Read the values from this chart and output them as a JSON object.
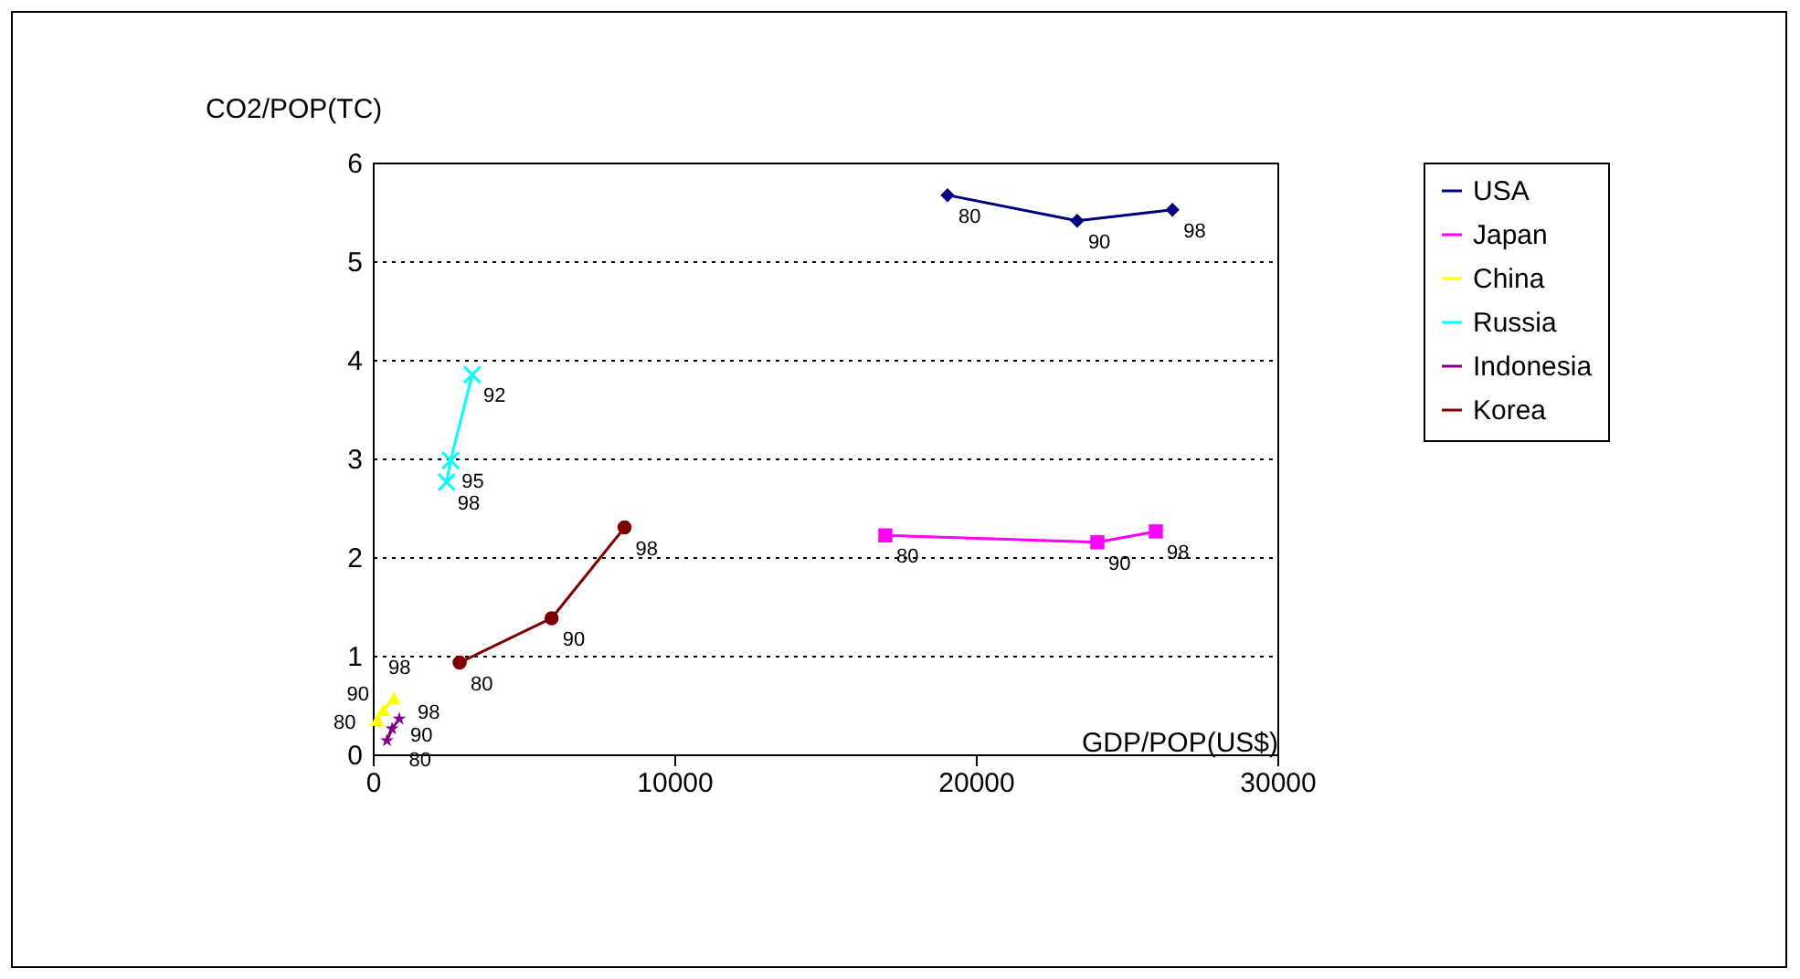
{
  "chart_data": {
    "type": "line",
    "xlabel": "GDP/POP(US$)",
    "ylabel": "CO2/POP(TC)",
    "xlim": [
      0,
      30000
    ],
    "xticks": [
      0,
      10000,
      20000,
      30000
    ],
    "ylim": [
      0,
      6
    ],
    "yticks": [
      0,
      1,
      2,
      3,
      4,
      5,
      6
    ],
    "grid": "y",
    "legend": "right",
    "line_style": "solid",
    "series": [
      {
        "name": "USA",
        "color": "#000080",
        "marker": "diamond",
        "x": [
          19060,
          23360,
          26520
        ],
        "values": [
          5.67,
          5.41,
          5.52
        ]
      },
      {
        "name": "Japan",
        "color": "#ff00ff",
        "marker": "square",
        "x": [
          17000,
          24030,
          25970
        ],
        "values": [
          2.22,
          2.15,
          2.26
        ]
      },
      {
        "name": "China",
        "color": "#ffff00",
        "marker": "triangle",
        "x": [
          150,
          350,
          700
        ],
        "values": [
          0.35,
          0.45,
          0.57
        ]
      },
      {
        "name": "Russia",
        "color": "#00ffff",
        "marker": "cross",
        "x": [
          3300,
          2580,
          2450
        ],
        "values": [
          3.85,
          2.98,
          2.76
        ]
      },
      {
        "name": "Indonesia",
        "color": "#800080",
        "marker": "star",
        "x": [
          470,
          640,
          880
        ],
        "values": [
          0.14,
          0.26,
          0.36
        ]
      },
      {
        "name": "Korea",
        "color": "#800000",
        "marker": "circle",
        "x": [
          2880,
          5930,
          8350
        ],
        "values": [
          0.93,
          1.38,
          2.3
        ]
      }
    ],
    "annotations": [
      {
        "text": "80",
        "x": 19060,
        "y": 5.67
      },
      {
        "text": "90",
        "x": 23360,
        "y": 5.41
      },
      {
        "text": "98",
        "x": 26520,
        "y": 5.52
      },
      {
        "text": "80",
        "x": 17000,
        "y": 2.22
      },
      {
        "text": "90",
        "x": 24030,
        "y": 2.15
      },
      {
        "text": "98",
        "x": 25970,
        "y": 2.26
      },
      {
        "text": "80",
        "x": 150,
        "y": 0.35
      },
      {
        "text": "90",
        "x": 350,
        "y": 0.45
      },
      {
        "text": "98",
        "x": 700,
        "y": 0.57
      },
      {
        "text": "92",
        "x": 3300,
        "y": 3.85
      },
      {
        "text": "95",
        "x": 2580,
        "y": 2.98
      },
      {
        "text": "98",
        "x": 2450,
        "y": 2.76
      },
      {
        "text": "80",
        "x": 470,
        "y": 0.14
      },
      {
        "text": "90",
        "x": 640,
        "y": 0.26
      },
      {
        "text": "98",
        "x": 880,
        "y": 0.36
      },
      {
        "text": "80",
        "x": 2880,
        "y": 0.93
      },
      {
        "text": "90",
        "x": 5930,
        "y": 1.38
      },
      {
        "text": "98",
        "x": 8350,
        "y": 2.3
      }
    ]
  }
}
